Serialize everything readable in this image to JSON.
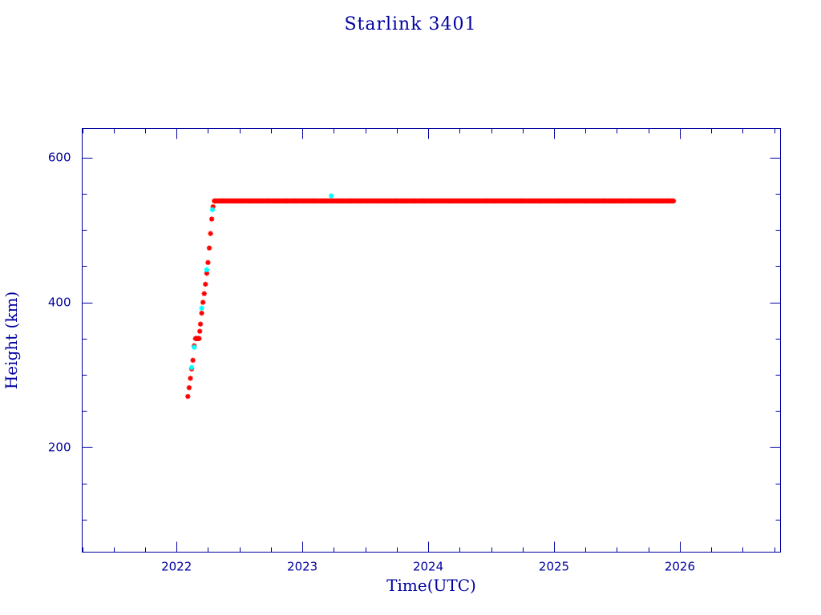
{
  "chart_data": {
    "type": "scatter",
    "title": "Starlink 3401",
    "xlabel": "Time(UTC)",
    "ylabel": "Height (km)",
    "xlim": [
      2021.25,
      2026.8
    ],
    "ylim": [
      55,
      640
    ],
    "x_ticks": [
      2022,
      2023,
      2024,
      2025,
      2026
    ],
    "y_ticks": [
      200,
      400,
      600
    ],
    "x_minor_step": 0.25,
    "y_minor_step": 50,
    "grid": false,
    "colors": {
      "axis": "#0000a0",
      "apogee": "#ff0000",
      "perigee": "#00ffff"
    },
    "series": [
      {
        "color": "#ff0000",
        "marker": "star",
        "points": [
          [
            2022.09,
            270
          ],
          [
            2022.1,
            282
          ],
          [
            2022.11,
            295
          ],
          [
            2022.12,
            308
          ],
          [
            2022.13,
            320
          ],
          [
            2022.14,
            340
          ],
          [
            2022.15,
            350
          ],
          [
            2022.16,
            350
          ],
          [
            2022.17,
            350
          ],
          [
            2022.18,
            350
          ],
          [
            2022.185,
            360
          ],
          [
            2022.19,
            370
          ],
          [
            2022.2,
            385
          ],
          [
            2022.21,
            400
          ],
          [
            2022.22,
            412
          ],
          [
            2022.23,
            425
          ],
          [
            2022.24,
            440
          ],
          [
            2022.25,
            455
          ],
          [
            2022.26,
            475
          ],
          [
            2022.27,
            495
          ],
          [
            2022.28,
            515
          ],
          [
            2022.29,
            532
          ],
          [
            2022.3,
            540
          ],
          [
            2022.35,
            540
          ],
          [
            2022.4,
            540
          ],
          [
            2022.45,
            540
          ],
          [
            2022.5,
            540
          ],
          [
            2022.55,
            540
          ],
          [
            2022.6,
            540
          ],
          [
            2022.65,
            540
          ],
          [
            2022.7,
            540
          ],
          [
            2022.75,
            540
          ],
          [
            2022.8,
            540
          ],
          [
            2022.85,
            540
          ],
          [
            2022.9,
            540
          ],
          [
            2022.95,
            540
          ],
          [
            2023.0,
            540
          ],
          [
            2023.05,
            540
          ],
          [
            2023.1,
            540
          ],
          [
            2023.15,
            540
          ],
          [
            2023.2,
            540
          ],
          [
            2023.25,
            540
          ],
          [
            2023.3,
            540
          ],
          [
            2023.35,
            540
          ],
          [
            2023.4,
            540
          ],
          [
            2023.45,
            540
          ],
          [
            2023.5,
            540
          ],
          [
            2023.55,
            540
          ],
          [
            2023.6,
            540
          ],
          [
            2023.65,
            540
          ],
          [
            2023.7,
            540
          ],
          [
            2023.75,
            540
          ],
          [
            2023.8,
            540
          ],
          [
            2023.85,
            540
          ],
          [
            2023.9,
            540
          ],
          [
            2023.95,
            540
          ],
          [
            2024.0,
            540
          ],
          [
            2024.05,
            540
          ],
          [
            2024.1,
            540
          ],
          [
            2024.15,
            540
          ],
          [
            2024.2,
            540
          ],
          [
            2024.25,
            540
          ],
          [
            2024.3,
            540
          ],
          [
            2024.35,
            540
          ],
          [
            2024.4,
            540
          ],
          [
            2024.45,
            540
          ],
          [
            2024.5,
            540
          ],
          [
            2024.55,
            540
          ],
          [
            2024.6,
            540
          ],
          [
            2024.65,
            540
          ],
          [
            2024.7,
            540
          ],
          [
            2024.75,
            540
          ],
          [
            2024.8,
            540
          ],
          [
            2024.85,
            540
          ],
          [
            2024.9,
            540
          ],
          [
            2024.95,
            540
          ],
          [
            2025.0,
            540
          ],
          [
            2025.05,
            540
          ],
          [
            2025.1,
            540
          ],
          [
            2025.15,
            540
          ],
          [
            2025.2,
            540
          ],
          [
            2025.25,
            540
          ],
          [
            2025.3,
            540
          ],
          [
            2025.35,
            540
          ],
          [
            2025.4,
            540
          ],
          [
            2025.45,
            540
          ],
          [
            2025.5,
            540
          ],
          [
            2025.55,
            540
          ],
          [
            2025.6,
            540
          ],
          [
            2025.65,
            540
          ],
          [
            2025.7,
            540
          ],
          [
            2025.75,
            540
          ],
          [
            2025.8,
            540
          ],
          [
            2025.85,
            540
          ],
          [
            2025.9,
            540
          ],
          [
            2025.95,
            540
          ]
        ]
      },
      {
        "color": "#00ffff",
        "marker": "star",
        "points": [
          [
            2022.12,
            310
          ],
          [
            2022.14,
            338
          ],
          [
            2022.2,
            392
          ],
          [
            2022.24,
            445
          ],
          [
            2022.285,
            528
          ],
          [
            2023.23,
            547
          ]
        ]
      }
    ]
  }
}
